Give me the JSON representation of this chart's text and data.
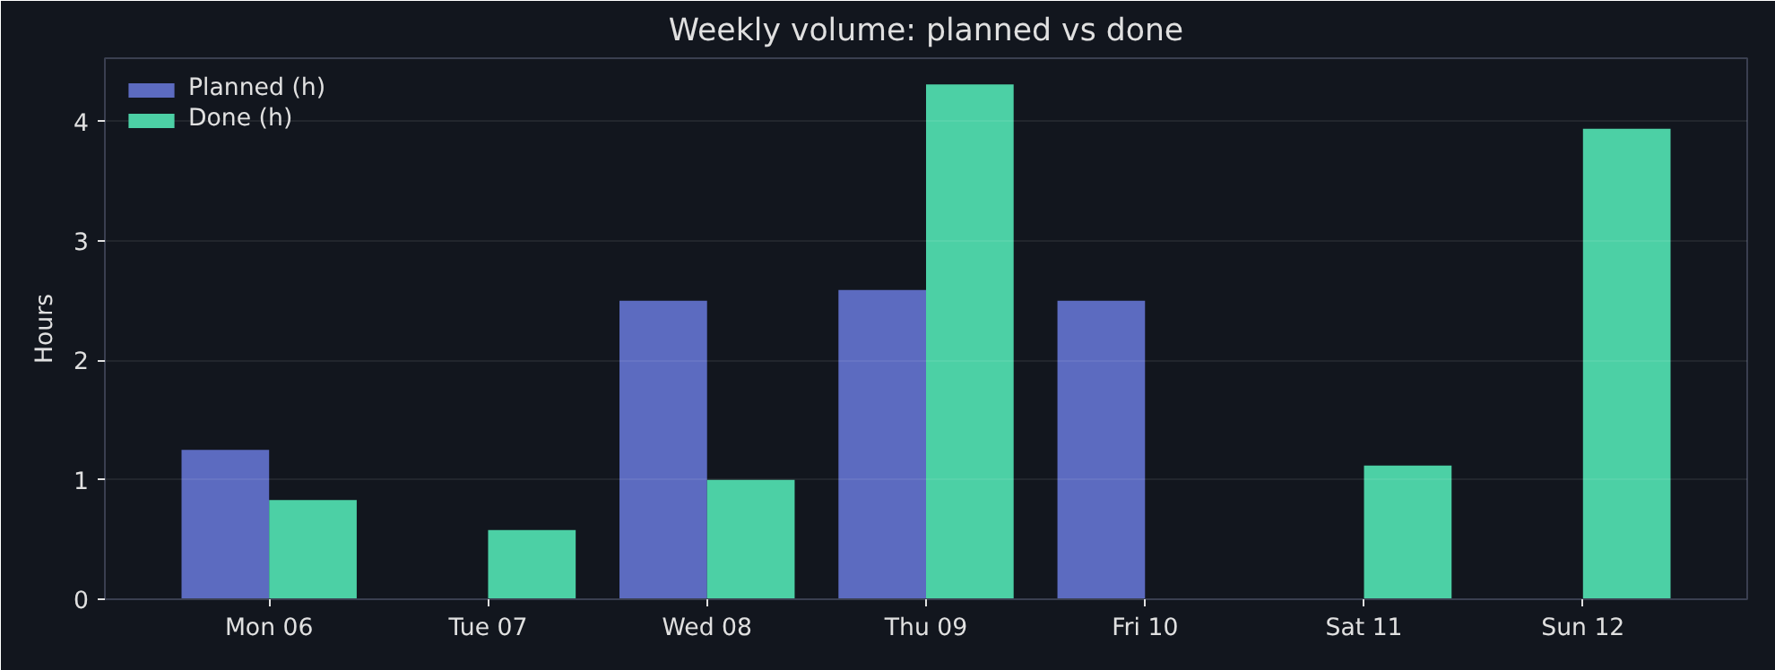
{
  "chart_data": {
    "type": "bar",
    "title": "Weekly volume: planned vs done",
    "ylabel": "Hours",
    "categories": [
      "Mon 06",
      "Tue 07",
      "Wed 08",
      "Thu 09",
      "Fri 10",
      "Sat 11",
      "Sun 12"
    ],
    "series": [
      {
        "name": "Planned (h)",
        "color": "#5c6bc0",
        "values": [
          1.25,
          0,
          2.5,
          2.59,
          2.5,
          0,
          0
        ]
      },
      {
        "name": "Done (h)",
        "color": "#4cd0a5",
        "values": [
          0.83,
          0.58,
          1.0,
          4.31,
          0,
          1.12,
          3.94
        ]
      }
    ],
    "ylim": [
      0,
      4.53
    ],
    "yticks": [
      0,
      1,
      2,
      3,
      4
    ],
    "grid": "y",
    "legend": "top left"
  }
}
